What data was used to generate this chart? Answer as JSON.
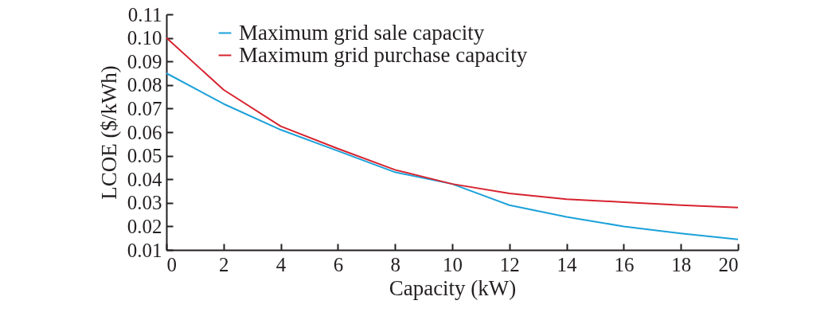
{
  "chart_data": {
    "type": "line",
    "xlabel": "Capacity (kW)",
    "ylabel": "LCOE ($/kWh)",
    "x": [
      0,
      2,
      4,
      6,
      8,
      10,
      12,
      14,
      16,
      18,
      20
    ],
    "series": [
      {
        "name": "Maximum grid sale capacity",
        "color": "#1ba1d9",
        "values": [
          0.085,
          0.072,
          0.061,
          0.052,
          0.043,
          0.038,
          0.029,
          0.024,
          0.02,
          0.017,
          0.0145
        ]
      },
      {
        "name": "Maximum grid purchase capacity",
        "color": "#d7232f",
        "values": [
          0.1,
          0.078,
          0.0625,
          0.053,
          0.044,
          0.038,
          0.034,
          0.0315,
          0.0303,
          0.029,
          0.028
        ]
      }
    ],
    "xlim": [
      0,
      20
    ],
    "xticks": [
      0,
      2,
      4,
      6,
      8,
      10,
      12,
      14,
      16,
      18,
      20
    ],
    "ylim": [
      0.01,
      0.11
    ],
    "yticks": [
      {
        "value": 0.01,
        "label": "0.01"
      },
      {
        "value": 0.02,
        "label": "0.02"
      },
      {
        "value": 0.03,
        "label": "0.03"
      },
      {
        "value": 0.04,
        "label": "0.04"
      },
      {
        "value": 0.05,
        "label": "0.05"
      },
      {
        "value": 0.06,
        "label": "0.06"
      },
      {
        "value": 0.07,
        "label": "0.07"
      },
      {
        "value": 0.08,
        "label": "0.08"
      },
      {
        "value": 0.09,
        "label": "0.09"
      },
      {
        "value": 0.1,
        "label": "0.10"
      },
      {
        "value": 0.11,
        "label": "0.11"
      }
    ],
    "grid": false,
    "legend": "top left",
    "marker": "none",
    "line_style": "solid"
  }
}
